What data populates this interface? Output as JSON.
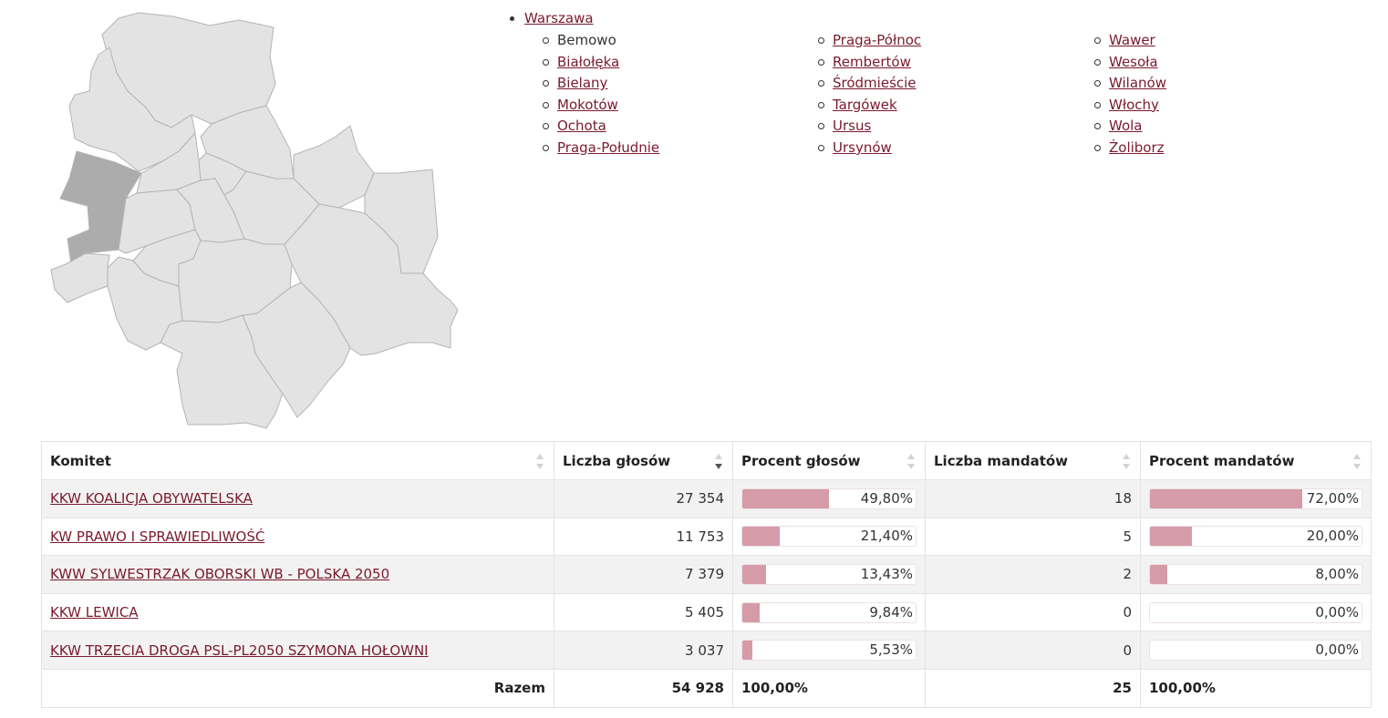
{
  "map": {
    "districts": [
      {
        "id": "bialoleka",
        "name": "Białołęka",
        "active": false
      },
      {
        "id": "bielany",
        "name": "Bielany",
        "active": false
      },
      {
        "id": "bemowo",
        "name": "Bemowo",
        "active": true
      },
      {
        "id": "zoliborz",
        "name": "Żoliborz",
        "active": false
      },
      {
        "id": "targowek",
        "name": "Targówek",
        "active": false
      },
      {
        "id": "praga-polnoc",
        "name": "Praga-Północ",
        "active": false
      },
      {
        "id": "rembertow",
        "name": "Rembertów",
        "active": false
      },
      {
        "id": "wola",
        "name": "Wola",
        "active": false
      },
      {
        "id": "srodmiescie",
        "name": "Śródmieście",
        "active": false
      },
      {
        "id": "praga-poludnie",
        "name": "Praga-Południe",
        "active": false
      },
      {
        "id": "wesola",
        "name": "Wesoła",
        "active": false
      },
      {
        "id": "ursus",
        "name": "Ursus",
        "active": false
      },
      {
        "id": "ochota",
        "name": "Ochota",
        "active": false
      },
      {
        "id": "wlochy",
        "name": "Włochy",
        "active": false
      },
      {
        "id": "mokotow",
        "name": "Mokotów",
        "active": false
      },
      {
        "id": "wawer",
        "name": "Wawer",
        "active": false
      },
      {
        "id": "ursynow",
        "name": "Ursynów",
        "active": false
      },
      {
        "id": "wilanow",
        "name": "Wilanów",
        "active": false
      }
    ]
  },
  "nav": {
    "city": "Warszawa",
    "columns": [
      [
        {
          "label": "Bemowo",
          "current": true
        },
        {
          "label": "Białołęka",
          "current": false
        },
        {
          "label": "Bielany",
          "current": false
        },
        {
          "label": "Mokotów",
          "current": false
        },
        {
          "label": "Ochota",
          "current": false
        },
        {
          "label": "Praga-Południe",
          "current": false
        }
      ],
      [
        {
          "label": "Praga-Północ",
          "current": false
        },
        {
          "label": "Rembertów",
          "current": false
        },
        {
          "label": "Śródmieście",
          "current": false
        },
        {
          "label": "Targówek",
          "current": false
        },
        {
          "label": "Ursus",
          "current": false
        },
        {
          "label": "Ursynów",
          "current": false
        }
      ],
      [
        {
          "label": "Wawer",
          "current": false
        },
        {
          "label": "Wesoła",
          "current": false
        },
        {
          "label": "Wilanów",
          "current": false
        },
        {
          "label": "Włochy",
          "current": false
        },
        {
          "label": "Wola",
          "current": false
        },
        {
          "label": "Żoliborz",
          "current": false
        }
      ]
    ]
  },
  "table": {
    "headers": {
      "committee": "Komitet",
      "votes": "Liczba głosów",
      "vote_pct": "Procent głosów",
      "seats": "Liczba mandatów",
      "seat_pct": "Procent mandatów"
    },
    "sorted_column": "votes",
    "sort_direction": "desc",
    "rows": [
      {
        "committee": "KKW KOALICJA OBYWATELSKA",
        "votes": "27 354",
        "vote_pct": "49,80%",
        "vote_pct_value": 49.8,
        "seats": "18",
        "seat_pct": "72,00%",
        "seat_pct_value": 72.0
      },
      {
        "committee": "KW PRAWO I SPRAWIEDLIWOŚĆ",
        "votes": "11 753",
        "vote_pct": "21,40%",
        "vote_pct_value": 21.4,
        "seats": "5",
        "seat_pct": "20,00%",
        "seat_pct_value": 20.0
      },
      {
        "committee": "KWW SYLWESTRZAK OBORSKI WB - POLSKA 2050",
        "votes": "7 379",
        "vote_pct": "13,43%",
        "vote_pct_value": 13.43,
        "seats": "2",
        "seat_pct": "8,00%",
        "seat_pct_value": 8.0
      },
      {
        "committee": "KKW LEWICA",
        "votes": "5 405",
        "vote_pct": "9,84%",
        "vote_pct_value": 9.84,
        "seats": "0",
        "seat_pct": "0,00%",
        "seat_pct_value": 0.0
      },
      {
        "committee": "KKW TRZECIA DROGA PSL-PL2050 SZYMONA HOŁOWNI",
        "votes": "3 037",
        "vote_pct": "5,53%",
        "vote_pct_value": 5.53,
        "seats": "0",
        "seat_pct": "0,00%",
        "seat_pct_value": 0.0
      }
    ],
    "totals": {
      "label": "Razem",
      "votes": "54 928",
      "vote_pct": "100,00%",
      "seats": "25",
      "seat_pct": "100,00%"
    }
  },
  "colors": {
    "link": "#7a1a2e",
    "bar_fill": "#d69ba9",
    "map_active": "#acacac",
    "map_district": "#e3e3e3"
  }
}
